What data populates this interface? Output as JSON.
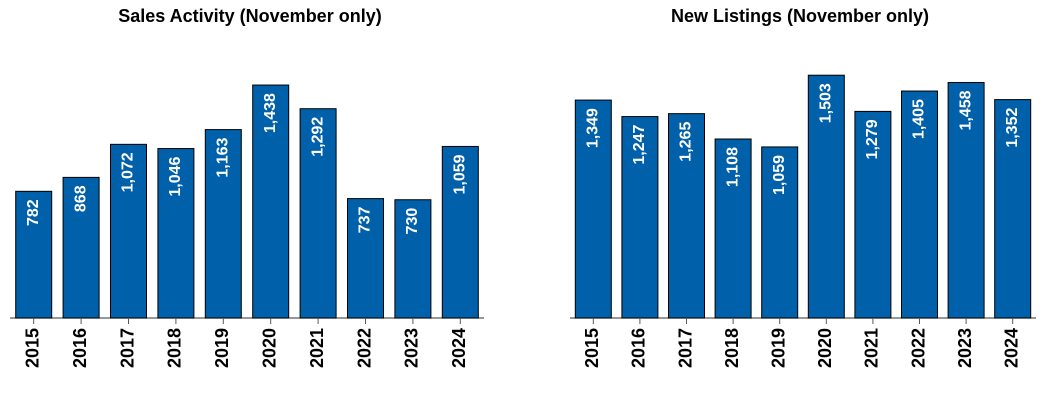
{
  "chart_data": [
    {
      "type": "bar",
      "title": "Sales Activity (November only)",
      "categories": [
        "2015",
        "2016",
        "2017",
        "2018",
        "2019",
        "2020",
        "2021",
        "2022",
        "2023",
        "2024"
      ],
      "values": [
        782,
        868,
        1072,
        1046,
        1163,
        1438,
        1292,
        737,
        730,
        1059
      ],
      "data_labels": [
        "782",
        "868",
        "1,072",
        "1,046",
        "1,163",
        "1,438",
        "1,292",
        "737",
        "730",
        "1,059"
      ],
      "xlabel": "",
      "ylabel": "",
      "ylim": [
        0,
        1500
      ],
      "bar_color": "#0060AA",
      "grid": false
    },
    {
      "type": "bar",
      "title": "New Listings (November only)",
      "categories": [
        "2015",
        "2016",
        "2017",
        "2018",
        "2019",
        "2020",
        "2021",
        "2022",
        "2023",
        "2024"
      ],
      "values": [
        1349,
        1247,
        1265,
        1108,
        1059,
        1503,
        1279,
        1405,
        1458,
        1352
      ],
      "data_labels": [
        "1,349",
        "1,247",
        "1,265",
        "1,108",
        "1,059",
        "1,503",
        "1,279",
        "1,405",
        "1,458",
        "1,352"
      ],
      "xlabel": "",
      "ylabel": "",
      "ylim": [
        0,
        1560
      ],
      "bar_color": "#0060AA",
      "grid": false
    }
  ]
}
